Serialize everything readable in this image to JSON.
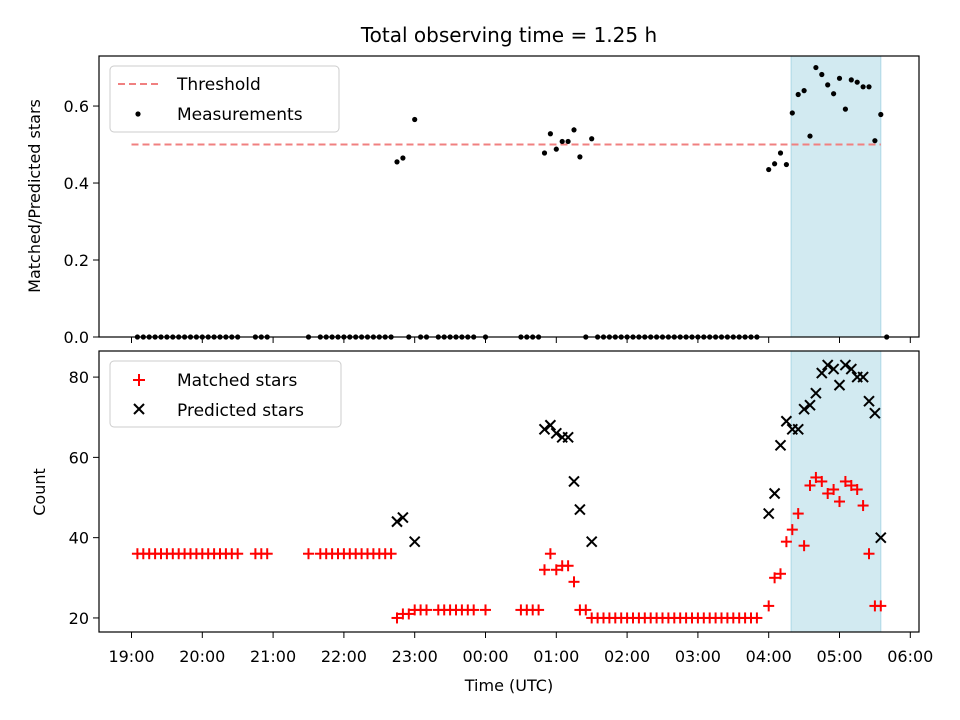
{
  "figure": {
    "title": "Total observing time = 1.25 h",
    "xlabel": "Time (UTC)",
    "x_ticks": [
      "19:00",
      "20:00",
      "21:00",
      "22:00",
      "23:00",
      "00:00",
      "01:00",
      "02:00",
      "03:00",
      "04:00",
      "05:00",
      "06:00"
    ],
    "colors": {
      "threshold": "#f08080",
      "measurements": "#000000",
      "matched": "#ff0000",
      "predicted": "#000000",
      "shade": "#add8e6"
    }
  },
  "chart_data": [
    {
      "type": "scatter",
      "title": "Total observing time = 1.25 h",
      "ylabel": "Matched/Predicted stars",
      "xlabel": "",
      "x_unit": "hours after 19:00 UTC",
      "xlim": [
        18.55,
        6.2
      ],
      "ylim": [
        0.0,
        0.73
      ],
      "y_ticks": [
        "0.0",
        "0.2",
        "0.4",
        "0.6"
      ],
      "legend_position": "top-left",
      "shaded_interval": [
        "04:19",
        "05:35"
      ],
      "threshold": {
        "name": "Threshold",
        "value": 0.5,
        "x_range": [
          "19:00",
          "05:35"
        ]
      },
      "series": [
        {
          "name": "Measurements",
          "points": [
            [
              "19:05",
              0
            ],
            [
              "19:10",
              0
            ],
            [
              "19:15",
              0
            ],
            [
              "19:20",
              0
            ],
            [
              "19:25",
              0
            ],
            [
              "19:30",
              0
            ],
            [
              "19:35",
              0
            ],
            [
              "19:40",
              0
            ],
            [
              "19:45",
              0
            ],
            [
              "19:50",
              0
            ],
            [
              "19:55",
              0
            ],
            [
              "20:00",
              0
            ],
            [
              "20:05",
              0
            ],
            [
              "20:10",
              0
            ],
            [
              "20:15",
              0
            ],
            [
              "20:20",
              0
            ],
            [
              "20:25",
              0
            ],
            [
              "20:30",
              0
            ],
            [
              "20:45",
              0
            ],
            [
              "20:50",
              0
            ],
            [
              "20:55",
              0
            ],
            [
              "21:30",
              0
            ],
            [
              "21:40",
              0
            ],
            [
              "21:45",
              0
            ],
            [
              "21:50",
              0
            ],
            [
              "21:55",
              0
            ],
            [
              "22:00",
              0
            ],
            [
              "22:05",
              0
            ],
            [
              "22:10",
              0
            ],
            [
              "22:15",
              0
            ],
            [
              "22:20",
              0
            ],
            [
              "22:25",
              0
            ],
            [
              "22:30",
              0
            ],
            [
              "22:35",
              0
            ],
            [
              "22:40",
              0
            ],
            [
              "22:45",
              0.455
            ],
            [
              "22:50",
              0.465
            ],
            [
              "22:55",
              0
            ],
            [
              "23:00",
              0.565
            ],
            [
              "23:05",
              0
            ],
            [
              "23:10",
              0
            ],
            [
              "23:20",
              0
            ],
            [
              "23:25",
              0
            ],
            [
              "23:30",
              0
            ],
            [
              "23:35",
              0
            ],
            [
              "23:40",
              0
            ],
            [
              "23:45",
              0
            ],
            [
              "23:50",
              0
            ],
            [
              "00:00",
              0
            ],
            [
              "00:30",
              0
            ],
            [
              "00:35",
              0
            ],
            [
              "00:40",
              0
            ],
            [
              "00:45",
              0
            ],
            [
              "00:50",
              0.478
            ],
            [
              "00:55",
              0.528
            ],
            [
              "01:00",
              0.488
            ],
            [
              "01:05",
              0.508
            ],
            [
              "01:10",
              0.508
            ],
            [
              "01:15",
              0.538
            ],
            [
              "01:20",
              0.468
            ],
            [
              "01:25",
              0
            ],
            [
              "01:30",
              0.515
            ],
            [
              "01:35",
              0
            ],
            [
              "01:40",
              0
            ],
            [
              "01:45",
              0
            ],
            [
              "01:50",
              0
            ],
            [
              "01:55",
              0
            ],
            [
              "02:00",
              0
            ],
            [
              "02:05",
              0
            ],
            [
              "02:10",
              0
            ],
            [
              "02:15",
              0
            ],
            [
              "02:20",
              0
            ],
            [
              "02:25",
              0
            ],
            [
              "02:30",
              0
            ],
            [
              "02:35",
              0
            ],
            [
              "02:40",
              0
            ],
            [
              "02:45",
              0
            ],
            [
              "02:50",
              0
            ],
            [
              "02:55",
              0
            ],
            [
              "03:00",
              0
            ],
            [
              "03:05",
              0
            ],
            [
              "03:10",
              0
            ],
            [
              "03:15",
              0
            ],
            [
              "03:20",
              0
            ],
            [
              "03:25",
              0
            ],
            [
              "03:30",
              0
            ],
            [
              "03:35",
              0
            ],
            [
              "03:40",
              0
            ],
            [
              "03:45",
              0
            ],
            [
              "03:50",
              0
            ],
            [
              "04:00",
              0.435
            ],
            [
              "04:05",
              0.45
            ],
            [
              "04:10",
              0.478
            ],
            [
              "04:15",
              0.448
            ],
            [
              "04:20",
              0.582
            ],
            [
              "04:25",
              0.63
            ],
            [
              "04:30",
              0.64
            ],
            [
              "04:35",
              0.522
            ],
            [
              "04:40",
              0.7
            ],
            [
              "04:45",
              0.682
            ],
            [
              "04:50",
              0.655
            ],
            [
              "04:55",
              0.632
            ],
            [
              "05:00",
              0.672
            ],
            [
              "05:05",
              0.592
            ],
            [
              "05:10",
              0.668
            ],
            [
              "05:15",
              0.662
            ],
            [
              "05:20",
              0.65
            ],
            [
              "05:25",
              0.65
            ],
            [
              "05:30",
              0.51
            ],
            [
              "05:35",
              0.578
            ],
            [
              "05:40",
              0
            ]
          ]
        }
      ]
    },
    {
      "type": "scatter",
      "title": "",
      "ylabel": "Count",
      "xlabel": "Time (UTC)",
      "x_unit": "hours after 19:00 UTC",
      "xlim": [
        18.55,
        6.2
      ],
      "ylim": [
        16.5,
        86.5
      ],
      "y_ticks": [
        "20",
        "40",
        "60",
        "80"
      ],
      "legend_position": "top-left",
      "shaded_interval": [
        "04:19",
        "05:35"
      ],
      "series": [
        {
          "name": "Matched stars",
          "marker": "plus",
          "points": [
            [
              "19:05",
              36
            ],
            [
              "19:10",
              36
            ],
            [
              "19:15",
              36
            ],
            [
              "19:20",
              36
            ],
            [
              "19:25",
              36
            ],
            [
              "19:30",
              36
            ],
            [
              "19:35",
              36
            ],
            [
              "19:40",
              36
            ],
            [
              "19:45",
              36
            ],
            [
              "19:50",
              36
            ],
            [
              "19:55",
              36
            ],
            [
              "20:00",
              36
            ],
            [
              "20:05",
              36
            ],
            [
              "20:10",
              36
            ],
            [
              "20:15",
              36
            ],
            [
              "20:20",
              36
            ],
            [
              "20:25",
              36
            ],
            [
              "20:30",
              36
            ],
            [
              "20:45",
              36
            ],
            [
              "20:50",
              36
            ],
            [
              "20:55",
              36
            ],
            [
              "21:30",
              36
            ],
            [
              "21:40",
              36
            ],
            [
              "21:45",
              36
            ],
            [
              "21:50",
              36
            ],
            [
              "21:55",
              36
            ],
            [
              "22:00",
              36
            ],
            [
              "22:05",
              36
            ],
            [
              "22:10",
              36
            ],
            [
              "22:15",
              36
            ],
            [
              "22:20",
              36
            ],
            [
              "22:25",
              36
            ],
            [
              "22:30",
              36
            ],
            [
              "22:35",
              36
            ],
            [
              "22:40",
              36
            ],
            [
              "22:45",
              20
            ],
            [
              "22:50",
              21
            ],
            [
              "22:55",
              21
            ],
            [
              "23:00",
              22
            ],
            [
              "23:05",
              22
            ],
            [
              "23:10",
              22
            ],
            [
              "23:20",
              22
            ],
            [
              "23:25",
              22
            ],
            [
              "23:30",
              22
            ],
            [
              "23:35",
              22
            ],
            [
              "23:40",
              22
            ],
            [
              "23:45",
              22
            ],
            [
              "23:50",
              22
            ],
            [
              "00:00",
              22
            ],
            [
              "00:30",
              22
            ],
            [
              "00:35",
              22
            ],
            [
              "00:40",
              22
            ],
            [
              "00:45",
              22
            ],
            [
              "00:50",
              32
            ],
            [
              "00:55",
              36
            ],
            [
              "01:00",
              32
            ],
            [
              "01:05",
              33
            ],
            [
              "01:10",
              33
            ],
            [
              "01:15",
              29
            ],
            [
              "01:20",
              22
            ],
            [
              "01:25",
              22
            ],
            [
              "01:30",
              20
            ],
            [
              "01:35",
              20
            ],
            [
              "01:40",
              20
            ],
            [
              "01:45",
              20
            ],
            [
              "01:50",
              20
            ],
            [
              "01:55",
              20
            ],
            [
              "02:00",
              20
            ],
            [
              "02:05",
              20
            ],
            [
              "02:10",
              20
            ],
            [
              "02:15",
              20
            ],
            [
              "02:20",
              20
            ],
            [
              "02:25",
              20
            ],
            [
              "02:30",
              20
            ],
            [
              "02:35",
              20
            ],
            [
              "02:40",
              20
            ],
            [
              "02:45",
              20
            ],
            [
              "02:50",
              20
            ],
            [
              "02:55",
              20
            ],
            [
              "03:00",
              20
            ],
            [
              "03:05",
              20
            ],
            [
              "03:10",
              20
            ],
            [
              "03:15",
              20
            ],
            [
              "03:20",
              20
            ],
            [
              "03:25",
              20
            ],
            [
              "03:30",
              20
            ],
            [
              "03:35",
              20
            ],
            [
              "03:40",
              20
            ],
            [
              "03:45",
              20
            ],
            [
              "03:50",
              20
            ],
            [
              "04:00",
              23
            ],
            [
              "04:05",
              30
            ],
            [
              "04:10",
              31
            ],
            [
              "04:15",
              39
            ],
            [
              "04:20",
              42
            ],
            [
              "04:25",
              46
            ],
            [
              "04:30",
              38
            ],
            [
              "04:35",
              53
            ],
            [
              "04:40",
              55
            ],
            [
              "04:45",
              54
            ],
            [
              "04:50",
              51
            ],
            [
              "04:55",
              52
            ],
            [
              "05:00",
              49
            ],
            [
              "05:05",
              54
            ],
            [
              "05:10",
              53
            ],
            [
              "05:15",
              52
            ],
            [
              "05:20",
              48
            ],
            [
              "05:25",
              36
            ],
            [
              "05:30",
              23
            ],
            [
              "05:35",
              23
            ]
          ]
        },
        {
          "name": "Predicted stars",
          "marker": "x",
          "points": [
            [
              "22:45",
              44
            ],
            [
              "22:50",
              45
            ],
            [
              "23:00",
              39
            ],
            [
              "00:50",
              67
            ],
            [
              "00:55",
              68
            ],
            [
              "01:00",
              66
            ],
            [
              "01:05",
              65
            ],
            [
              "01:10",
              65
            ],
            [
              "01:15",
              54
            ],
            [
              "01:20",
              47
            ],
            [
              "01:30",
              39
            ],
            [
              "04:00",
              46
            ],
            [
              "04:05",
              51
            ],
            [
              "04:10",
              63
            ],
            [
              "04:15",
              69
            ],
            [
              "04:20",
              67
            ],
            [
              "04:25",
              67
            ],
            [
              "04:30",
              72
            ],
            [
              "04:35",
              73
            ],
            [
              "04:40",
              76
            ],
            [
              "04:45",
              81
            ],
            [
              "04:50",
              83
            ],
            [
              "04:55",
              82
            ],
            [
              "05:00",
              78
            ],
            [
              "05:05",
              83
            ],
            [
              "05:10",
              82
            ],
            [
              "05:15",
              80
            ],
            [
              "05:20",
              80
            ],
            [
              "05:25",
              74
            ],
            [
              "05:30",
              71
            ],
            [
              "05:35",
              40
            ]
          ]
        }
      ]
    }
  ]
}
